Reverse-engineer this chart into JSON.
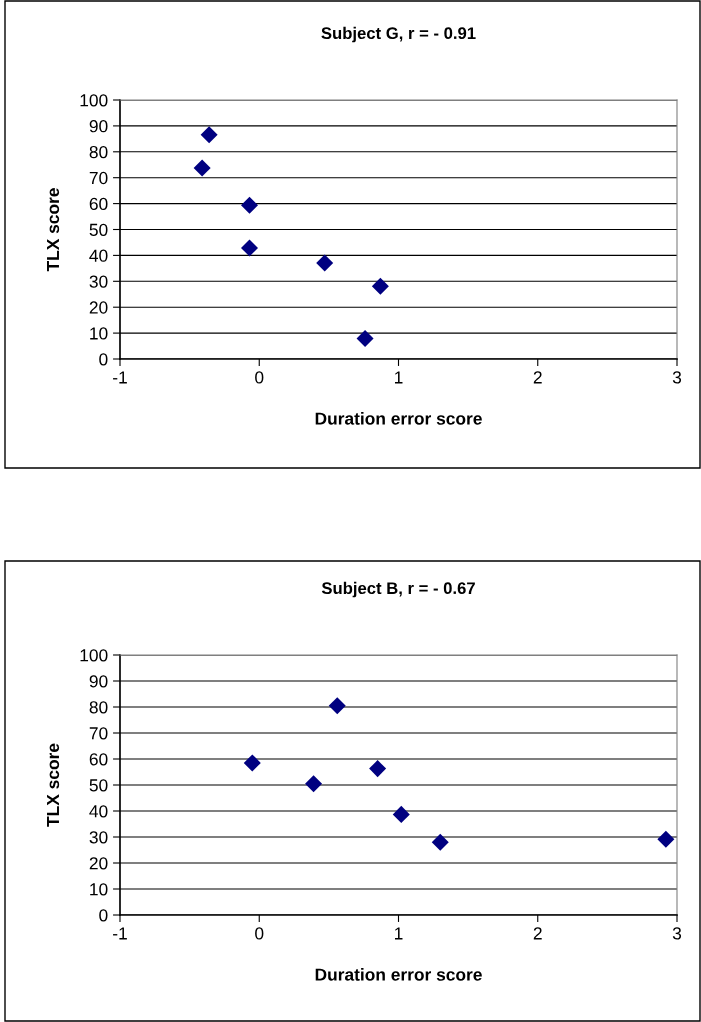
{
  "chart_data": [
    {
      "type": "scatter",
      "title": "Subject G, r = - 0.91",
      "xlabel": "Duration error score",
      "ylabel": "TLX score",
      "x": [
        -0.36,
        -0.41,
        -0.07,
        -0.07,
        0.47,
        0.87,
        0.76
      ],
      "series": [
        {
          "color": "#000080",
          "values": [
            86.6,
            73.7,
            59.4,
            42.9,
            37.1,
            28.1,
            7.9
          ]
        }
      ],
      "marker": "diamond",
      "xlim": [
        -1,
        3
      ],
      "xticks": [
        -1,
        0,
        1,
        2,
        3
      ],
      "ylim": [
        0,
        100
      ],
      "yticks": [
        0,
        10,
        20,
        30,
        40,
        50,
        60,
        70,
        80,
        90,
        100
      ],
      "grid": "y"
    },
    {
      "type": "scatter",
      "title": "Subject B, r = - 0.67",
      "xlabel": "Duration error score",
      "ylabel": "TLX score",
      "x": [
        -0.05,
        0.39,
        0.56,
        0.85,
        1.02,
        1.3,
        2.92
      ],
      "series": [
        {
          "color": "#000080",
          "values": [
            58.5,
            50.5,
            80.5,
            56.3,
            38.7,
            28.0,
            29.1
          ]
        }
      ],
      "marker": "diamond",
      "xlim": [
        -1,
        3
      ],
      "xticks": [
        -1,
        0,
        1,
        2,
        3
      ],
      "ylim": [
        0,
        100
      ],
      "yticks": [
        0,
        10,
        20,
        30,
        40,
        50,
        60,
        70,
        80,
        90,
        100
      ],
      "grid": "y"
    }
  ]
}
